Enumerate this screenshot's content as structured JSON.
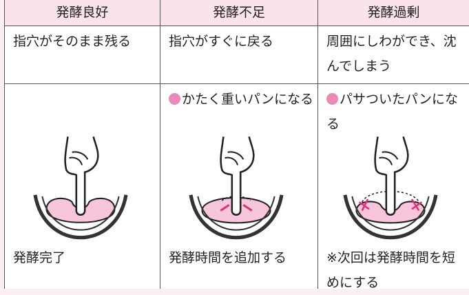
{
  "table": {
    "header": [
      "発酵良好",
      "発酵不足",
      "発酵過剰"
    ],
    "rows": [
      [
        "指穴がそのまま残る",
        "指穴がすぐに戻る",
        "周囲にしわができ、沈んでしまう"
      ]
    ]
  },
  "results": [
    {
      "caption": "発酵完了"
    },
    {
      "note": "かたく重いパンになる",
      "caption": "発酵時間を追加する"
    },
    {
      "note": "パサついたパンになる",
      "caption": "※次回は発酵時間を短めにする"
    }
  ]
}
